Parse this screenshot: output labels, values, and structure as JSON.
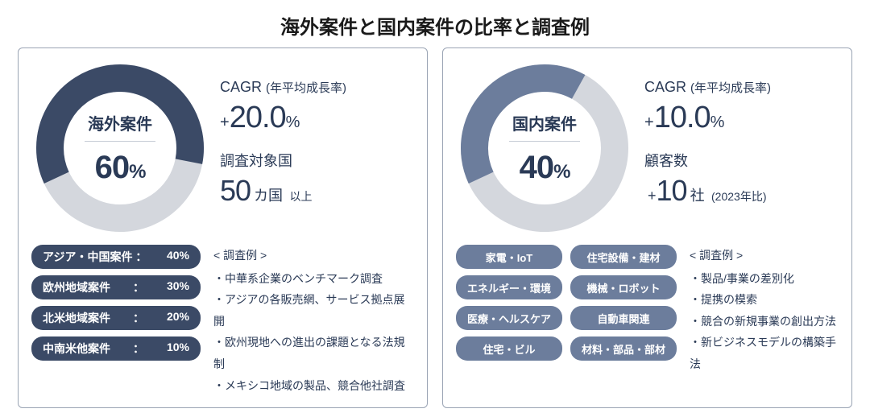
{
  "title": "海外案件と国内案件の比率と調査例",
  "colors": {
    "panel_border": "#9aa4b4",
    "text_main": "#2a3a56",
    "donut_bg": "#d4d7dd",
    "donut_left": "#3b4a66",
    "donut_right": "#6c7d9c",
    "region_pill_bg": "#3b4a66",
    "field_pill_bg": "#6c7d9c",
    "pill_text": "#ffffff"
  },
  "left": {
    "donut": {
      "label": "海外案件",
      "percent_text": "60",
      "percent_unit": "%",
      "value": 60,
      "ring_color": "#3b4a66",
      "ring_bg": "#d4d7dd",
      "thickness": 34,
      "start_angle_deg": -205
    },
    "cagr": {
      "title_main": "CAGR",
      "title_paren": "(年平均成長率)",
      "value_prefix": "+",
      "value": "20.0",
      "value_unit": "%"
    },
    "stat2": {
      "title": "調査対象国",
      "value": "50",
      "value_unit": "カ国",
      "suffix": "以上"
    },
    "regions": [
      {
        "label": "アジア・中国案件 ：",
        "pct": "40%"
      },
      {
        "label": "欧州地域案件　　：",
        "pct": "30%"
      },
      {
        "label": "北米地域案件　　：",
        "pct": "20%"
      },
      {
        "label": "中南米他案件　　：",
        "pct": "10%"
      }
    ],
    "examples_header": "< 調査例 >",
    "examples": [
      "中華系企業のベンチマーク調査",
      "アジアの各販売網、サービス拠点展開",
      "欧州現地への進出の課題となる法規制",
      "メキシコ地域の製品、競合他社調査"
    ]
  },
  "right": {
    "donut": {
      "label": "国内案件",
      "percent_text": "40",
      "percent_unit": "%",
      "value": 40,
      "ring_color": "#6c7d9c",
      "ring_bg": "#d4d7dd",
      "thickness": 34,
      "start_angle_deg": -205
    },
    "cagr": {
      "title_main": "CAGR",
      "title_paren": "(年平均成長率)",
      "value_prefix": "+",
      "value": "10.0",
      "value_unit": "%"
    },
    "stat2": {
      "title": "顧客数",
      "value_prefix": "+",
      "value": "10",
      "value_unit": "社",
      "suffix": "(2023年比)"
    },
    "fields": [
      "家電・IoT",
      "住宅設備・建材",
      "エネルギー・環境",
      "機械・ロボット",
      "医療・ヘルスケア",
      "自動車関連",
      "住宅・ビル",
      "材料・部品・部材"
    ],
    "examples_header": "< 調査例 >",
    "examples": [
      "製品/事業の差別化",
      "提携の模索",
      "競合の新規事業の創出方法",
      "新ビジネスモデルの構築手法"
    ]
  }
}
